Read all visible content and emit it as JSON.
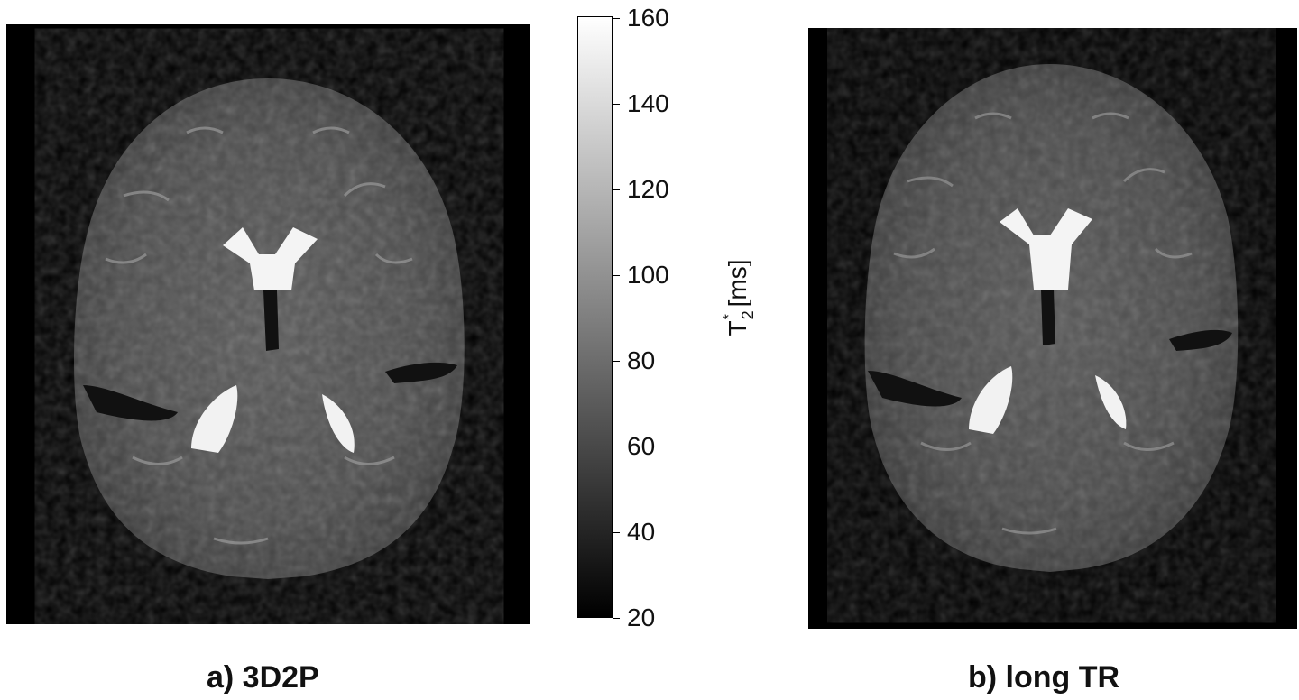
{
  "panels": [
    {
      "id": "a",
      "caption": "a) 3D2P"
    },
    {
      "id": "b",
      "caption": "b) long TR"
    }
  ],
  "colorbar": {
    "label_base": "T",
    "label_sub": "2",
    "label_sup": "*",
    "label_unit": "[ms]",
    "min": 20,
    "max": 160,
    "ticks": [
      "160",
      "140",
      "120",
      "100",
      "80",
      "60",
      "40",
      "20"
    ],
    "colormap": "gray"
  }
}
